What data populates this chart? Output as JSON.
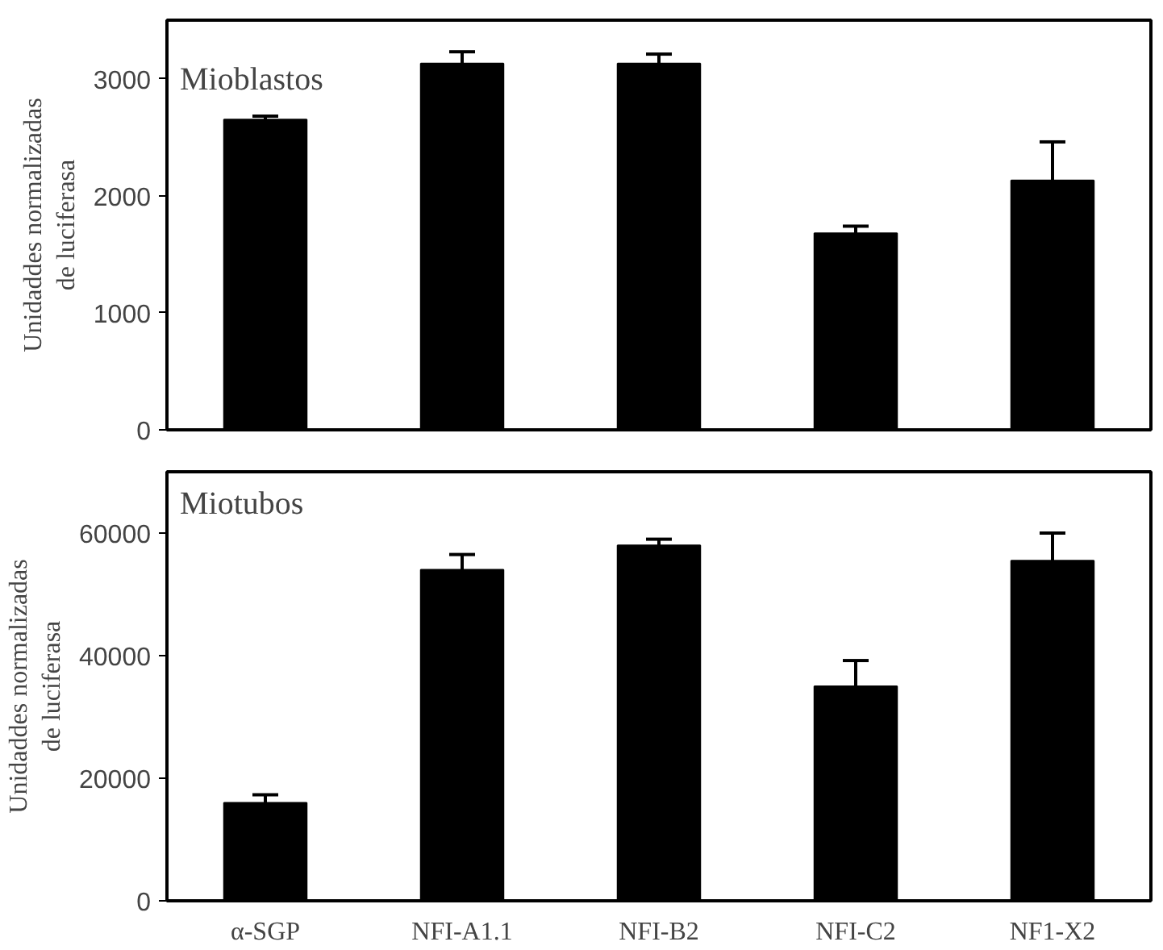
{
  "chart_data": [
    {
      "type": "bar",
      "categories": [
        null,
        null,
        null,
        null,
        null
      ],
      "ylabel": "Unidaddes normalizadas\nde luciferasa",
      "annotations": [
        "Mioblastos"
      ],
      "color": "#000000",
      "values": [
        2650,
        3130,
        3130,
        1680,
        2130
      ],
      "errors": [
        30,
        100,
        80,
        60,
        330
      ],
      "ylim": [
        0,
        3500
      ],
      "yticks": [
        0,
        1000,
        2000,
        3000
      ],
      "tick_labels": "y",
      "grid": false
    },
    {
      "type": "bar",
      "categories": [
        "α-SGP",
        "NFI-A1.1",
        "NFI-B2",
        "NFI-C2",
        "NF1-X2"
      ],
      "ylabel": "Unidaddes normalizadas\nde luciferasa",
      "annotations": [
        "Miotubos"
      ],
      "color": "#000000",
      "values": [
        16000,
        54000,
        58000,
        35000,
        55500
      ],
      "errors": [
        1300,
        2500,
        1000,
        4200,
        4500
      ],
      "ylim": [
        0,
        70000
      ],
      "yticks": [
        0,
        20000,
        40000,
        60000
      ],
      "grid": false
    }
  ]
}
